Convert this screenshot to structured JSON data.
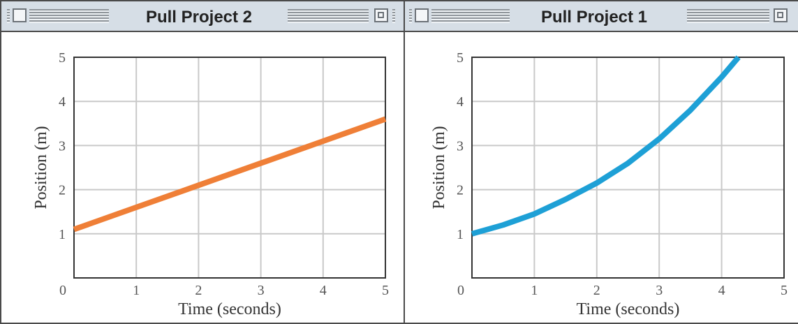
{
  "windows": [
    {
      "title": "Pull Project 2",
      "chart_data": {
        "type": "line",
        "xlabel": "Time (seconds)",
        "ylabel": "Position (m)",
        "xlim": [
          0,
          5
        ],
        "ylim": [
          0,
          5
        ],
        "x_ticks": [
          "0",
          "1",
          "2",
          "3",
          "4",
          "5"
        ],
        "y_ticks": [
          "0",
          "1",
          "2",
          "3",
          "4",
          "5"
        ],
        "grid": true,
        "series": [
          {
            "color": "#ef7f37",
            "x": [
              0,
              1,
              2,
              3,
              4,
              5
            ],
            "y": [
              1.1,
              1.6,
              2.1,
              2.6,
              3.1,
              3.6
            ]
          }
        ]
      }
    },
    {
      "title": "Pull Project 1",
      "chart_data": {
        "type": "line",
        "xlabel": "Time (seconds)",
        "ylabel": "Position (m)",
        "xlim": [
          0,
          5
        ],
        "ylim": [
          0,
          5
        ],
        "x_ticks": [
          "0",
          "1",
          "2",
          "3",
          "4",
          "5"
        ],
        "y_ticks": [
          "0",
          "1",
          "2",
          "3",
          "4",
          "5"
        ],
        "grid": true,
        "series": [
          {
            "color": "#1ea0d6",
            "x": [
              0,
              0.5,
              1,
              1.5,
              2,
              2.5,
              3,
              3.5,
              4,
              4.27
            ],
            "y": [
              1.0,
              1.2,
              1.45,
              1.78,
              2.15,
              2.6,
              3.15,
              3.8,
              4.55,
              5.0
            ]
          }
        ]
      }
    }
  ]
}
